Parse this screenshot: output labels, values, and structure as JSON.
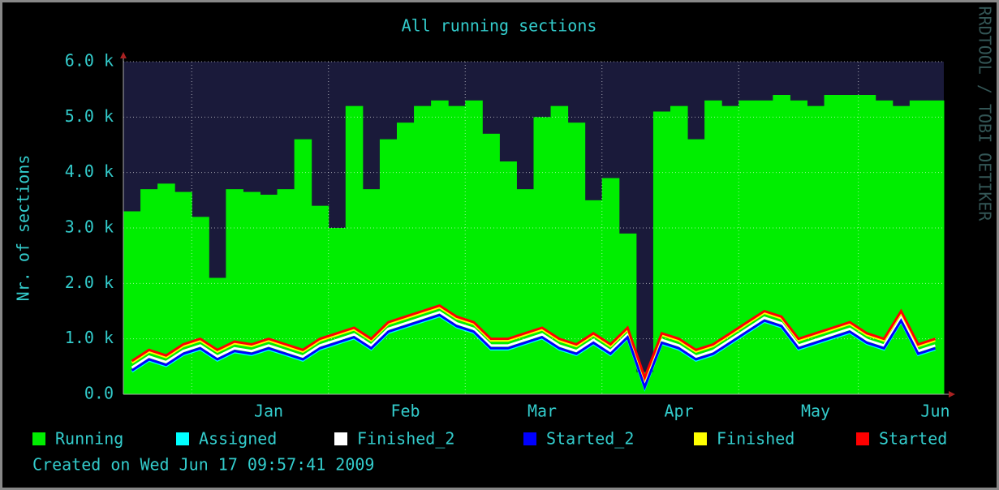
{
  "chart_data": {
    "type": "area-lines",
    "title": "All running sections",
    "ylabel": "Nr. of sections",
    "watermark": "RRDTOOL / TOBI OETIKER",
    "footer": "Created on Wed Jun 17 09:57:41 2009",
    "categories": [
      null,
      null,
      null,
      null,
      null,
      null,
      null,
      null,
      "Jan",
      null,
      null,
      null,
      null,
      null,
      null,
      null,
      "Feb",
      null,
      null,
      null,
      null,
      null,
      null,
      null,
      "Mar",
      null,
      null,
      null,
      null,
      null,
      null,
      null,
      "Apr",
      null,
      null,
      null,
      null,
      null,
      null,
      null,
      "May",
      null,
      null,
      null,
      null,
      null,
      null,
      "Jun"
    ],
    "ylim": [
      0,
      6000
    ],
    "yticks": [
      {
        "value": 0,
        "label": "0.0"
      },
      {
        "value": 1000,
        "label": "1.0 k"
      },
      {
        "value": 2000,
        "label": "2.0 k"
      },
      {
        "value": 3000,
        "label": "3.0 k"
      },
      {
        "value": 4000,
        "label": "4.0 k"
      },
      {
        "value": 5000,
        "label": "5.0 k"
      },
      {
        "value": 6000,
        "label": "6.0 k"
      }
    ],
    "grid": true,
    "series": [
      {
        "name": "Running",
        "color": "#00ee00",
        "style": "area",
        "values": [
          3300,
          3700,
          3800,
          3650,
          3200,
          2100,
          3700,
          3650,
          3600,
          3700,
          4600,
          3400,
          3000,
          5200,
          3700,
          4600,
          4900,
          5200,
          5300,
          5200,
          5300,
          4700,
          4200,
          3700,
          5000,
          5200,
          4900,
          3500,
          3900,
          2900,
          400,
          5100,
          5200,
          4600,
          5300,
          5200,
          5300,
          5300,
          5400,
          5300,
          5200,
          5400,
          5400,
          5400,
          5300,
          5200,
          5300,
          5300
        ]
      },
      {
        "name": "Assigned",
        "color": "#00ffff",
        "style": "line",
        "values": [
          410,
          610,
          510,
          710,
          810,
          610,
          760,
          710,
          810,
          710,
          610,
          810,
          910,
          1010,
          810,
          1110,
          1210,
          1310,
          1410,
          1210,
          1110,
          810,
          810,
          910,
          1010,
          810,
          710,
          910,
          710,
          1010,
          110,
          910,
          810,
          610,
          710,
          910,
          1110,
          1310,
          1210,
          810,
          910,
          1010,
          1110,
          910,
          810,
          1310,
          710,
          810
        ]
      },
      {
        "name": "Finished_2",
        "color": "#ffffff",
        "style": "line",
        "values": [
          480,
          680,
          580,
          780,
          880,
          680,
          830,
          780,
          880,
          780,
          680,
          880,
          980,
          1080,
          880,
          1180,
          1280,
          1380,
          1480,
          1280,
          1180,
          880,
          880,
          980,
          1080,
          880,
          780,
          980,
          780,
          1080,
          180,
          980,
          880,
          680,
          780,
          980,
          1180,
          1380,
          1280,
          880,
          980,
          1080,
          1180,
          980,
          880,
          1380,
          780,
          880
        ]
      },
      {
        "name": "Started_2",
        "color": "#0000ff",
        "style": "line",
        "values": [
          430,
          630,
          530,
          730,
          830,
          630,
          780,
          730,
          830,
          730,
          630,
          830,
          930,
          1030,
          830,
          1130,
          1230,
          1330,
          1430,
          1230,
          1130,
          830,
          830,
          930,
          1030,
          830,
          730,
          930,
          730,
          1030,
          130,
          930,
          830,
          630,
          730,
          930,
          1130,
          1330,
          1230,
          830,
          930,
          1030,
          1130,
          930,
          830,
          1330,
          730,
          830
        ]
      },
      {
        "name": "Finished",
        "color": "#ffff00",
        "style": "line",
        "values": [
          570,
          770,
          670,
          870,
          970,
          770,
          920,
          870,
          970,
          870,
          770,
          970,
          1070,
          1170,
          970,
          1270,
          1370,
          1470,
          1570,
          1370,
          1270,
          970,
          970,
          1070,
          1170,
          970,
          870,
          1070,
          870,
          1170,
          270,
          1070,
          970,
          770,
          870,
          1070,
          1270,
          1470,
          1370,
          970,
          1070,
          1170,
          1270,
          1070,
          970,
          1470,
          870,
          970
        ]
      },
      {
        "name": "Started",
        "color": "#ff0000",
        "style": "line",
        "values": [
          600,
          800,
          700,
          900,
          1000,
          800,
          950,
          900,
          1000,
          900,
          800,
          1000,
          1100,
          1200,
          1000,
          1300,
          1400,
          1500,
          1600,
          1400,
          1300,
          1000,
          1000,
          1100,
          1200,
          1000,
          900,
          1100,
          900,
          1200,
          300,
          1100,
          1000,
          800,
          900,
          1100,
          1300,
          1500,
          1400,
          1000,
          1100,
          1200,
          1300,
          1100,
          1000,
          1500,
          900,
          1000
        ]
      }
    ]
  }
}
